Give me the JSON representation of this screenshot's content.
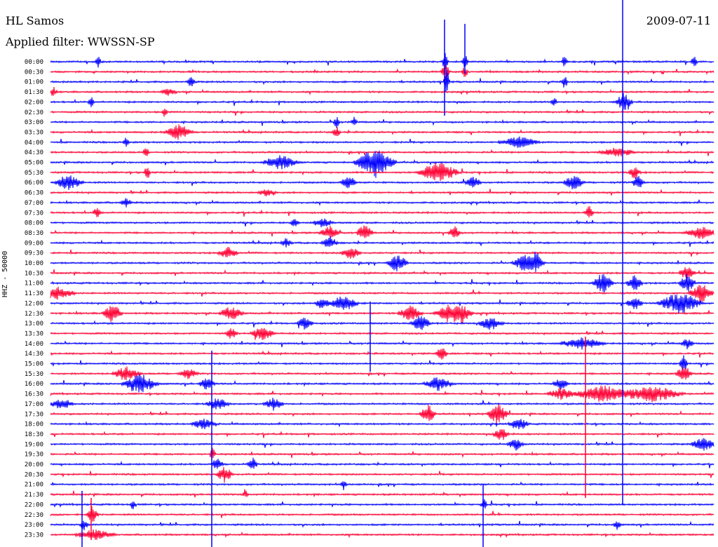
{
  "header": {
    "station": "HL Samos",
    "date": "2009-07-11",
    "filter": "Applied filter: WWSSN-SP"
  },
  "side_label": "HHZ - 50000",
  "colors": {
    "blue": "#0000ff",
    "red": "#ff0033"
  },
  "rows": [
    "00:00",
    "00:30",
    "01:00",
    "01:30",
    "02:00",
    "02:30",
    "03:00",
    "03:30",
    "04:00",
    "04:30",
    "05:00",
    "05:30",
    "06:00",
    "06:30",
    "07:00",
    "07:30",
    "08:00",
    "08:30",
    "09:00",
    "09:30",
    "10:00",
    "10:30",
    "11:00",
    "11:30",
    "12:00",
    "12:30",
    "13:00",
    "13:30",
    "14:00",
    "14:30",
    "15:00",
    "15:30",
    "16:00",
    "16:30",
    "17:00",
    "17:30",
    "18:00",
    "18:30",
    "19:00",
    "19:30",
    "20:00",
    "20:30",
    "21:00",
    "21:30",
    "22:00",
    "22:30",
    "23:00",
    "23:30"
  ]
}
